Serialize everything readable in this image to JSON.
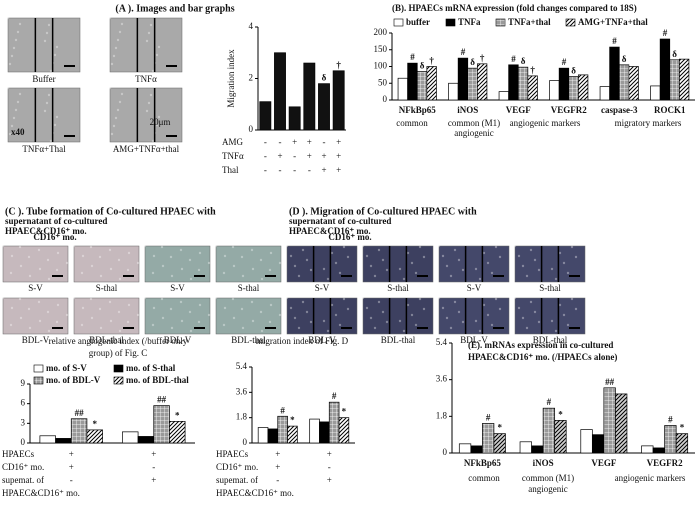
{
  "panels": {
    "a": {
      "title": "(A ). Images and bar graphs",
      "images": [
        "Buffer",
        "TNFα",
        "TNFα+Thal",
        "AMG+TNFα+thal"
      ],
      "magnification": "x40",
      "scale_bar": "20μm"
    },
    "c": {
      "title_lines": [
        "(C ).  Tube formation of Co-cultured  HPAEC with",
        "supernatant of  co-cultured",
        "HPAEC&CD16⁺ mo."
      ],
      "header": "CD16⁺ mo.",
      "images": [
        "S-V",
        "S-thal",
        "S-V",
        "S-thal",
        "BDL-V",
        "BDL-thal",
        "BDL-V",
        "BDL-thal"
      ]
    },
    "d": {
      "title_lines": [
        "(D ).  Migration of Co-cultured  HPAEC with",
        "supernatant of  co-cultured",
        "HPAEC&CD16⁺ mo."
      ],
      "header": "CD16⁺ mo.",
      "images": [
        "S-V",
        "S-thal",
        "S-V",
        "S-thal",
        "BDL-V",
        "BDL-thal",
        "BDL-V",
        "BDL-thal"
      ]
    }
  },
  "chart_data": [
    {
      "type": "bar",
      "y_label": "Migration index",
      "ylim": [
        0,
        4
      ],
      "yticks": [
        0,
        2,
        4
      ],
      "values": [
        1.1,
        3.0,
        0.9,
        2.6,
        1.8,
        2.3
      ],
      "color": "#111111",
      "annotations": [
        null,
        null,
        null,
        null,
        "δ",
        "†"
      ],
      "conditions": [
        {
          "label_lines": [
            "AMG"
          ],
          "marks": [
            "-",
            "-",
            "+",
            "+",
            "-",
            "+"
          ]
        },
        {
          "label_lines": [
            "TNFα"
          ],
          "marks": [
            "-",
            "+",
            "-",
            "+",
            "+",
            "+"
          ]
        },
        {
          "label_lines": [
            "Thal"
          ],
          "marks": [
            "-",
            "-",
            "-",
            "-",
            "+",
            "+"
          ]
        }
      ]
    },
    {
      "type": "bar",
      "title_lines": [
        "(B).  HPAECs mRNA expression (fold changes compared to 18S)"
      ],
      "ylim": [
        0,
        200
      ],
      "yticks": [
        0,
        50,
        100,
        150,
        200
      ],
      "categories": [
        "NFkBp65",
        "iNOS",
        "VEGF",
        "VEGFR2",
        "caspase-3",
        "ROCK1"
      ],
      "group_labels": [
        "common",
        "common (M1)",
        "angiogenic",
        "angiogenic markers",
        "migratory markers"
      ],
      "legend": "top",
      "series": [
        {
          "name": "buffer",
          "color": "#ffffff",
          "pattern": "solid",
          "values": [
            65,
            50,
            25,
            58,
            40,
            42
          ]
        },
        {
          "name": "TNFa",
          "color": "#000000",
          "pattern": "solid",
          "values": [
            110,
            125,
            105,
            95,
            158,
            182
          ],
          "annotations": [
            "#",
            "#",
            "#",
            "#",
            "#",
            "#"
          ]
        },
        {
          "name": "TNFa+thal",
          "color": "#9a9a9a",
          "pattern": "grid",
          "values": [
            85,
            95,
            98,
            70,
            105,
            120
          ],
          "annotations": [
            "δ",
            "δ",
            "δ",
            "δ",
            "δ",
            "δ"
          ]
        },
        {
          "name": "AMG+TNFa+thal",
          "color": "#ffffff",
          "pattern": "diagonal",
          "values": [
            100,
            108,
            72,
            75,
            100,
            122
          ],
          "annotations": [
            "†",
            "†",
            "†",
            null,
            null,
            null
          ]
        }
      ]
    },
    {
      "type": "bar",
      "title_lines": [
        "relative angiogenic index (/buffer only",
        "group) of Fig. C"
      ],
      "ylim": [
        0,
        9
      ],
      "yticks": [
        0,
        3,
        6,
        9
      ],
      "legend": "top",
      "series": [
        {
          "name": "mo. of S-V",
          "color": "#ffffff",
          "pattern": "solid",
          "values": [
            1.1,
            1.7
          ]
        },
        {
          "name": "mo. of S-thal",
          "color": "#000000",
          "pattern": "solid",
          "values": [
            0.7,
            1.0
          ]
        },
        {
          "name": "mo. of BDL-V",
          "color": "#9a9a9a",
          "pattern": "grid",
          "values": [
            3.7,
            5.7
          ],
          "annotations": [
            "##",
            "##"
          ]
        },
        {
          "name": "mo. of BDL-thal",
          "color": "#ffffff",
          "pattern": "diagonal",
          "values": [
            2.0,
            3.3
          ],
          "annotations": [
            "*",
            "*"
          ]
        }
      ],
      "conditions": [
        {
          "label_lines": [
            "HPAECs"
          ],
          "marks": [
            "+",
            "+"
          ]
        },
        {
          "label_lines": [
            "CD16⁺ mo."
          ],
          "marks": [
            "+",
            "-"
          ]
        },
        {
          "label_lines": [
            "supemat. of",
            "HPAEC&CD16⁺ mo."
          ],
          "marks": [
            "-",
            "+"
          ]
        }
      ]
    },
    {
      "type": "bar",
      "title_lines": [
        "migration index of Fig. D"
      ],
      "ylim": [
        0,
        5.4
      ],
      "yticks": [
        0,
        1.8,
        3.6,
        5.4
      ],
      "series": [
        {
          "color": "#ffffff",
          "pattern": "solid",
          "values": [
            1.1,
            1.7
          ]
        },
        {
          "color": "#000000",
          "pattern": "solid",
          "values": [
            1.0,
            1.5
          ]
        },
        {
          "color": "#9a9a9a",
          "pattern": "grid",
          "values": [
            1.9,
            2.9
          ],
          "annotations": [
            "#",
            "#"
          ]
        },
        {
          "color": "#ffffff",
          "pattern": "diagonal",
          "values": [
            1.2,
            1.8
          ],
          "annotations": [
            "*",
            "*"
          ]
        }
      ],
      "conditions": [
        {
          "label_lines": [
            "HPAECs"
          ],
          "marks": [
            "+",
            "+"
          ]
        },
        {
          "label_lines": [
            "CD16⁺ mo."
          ],
          "marks": [
            "+",
            "-"
          ]
        },
        {
          "label_lines": [
            "supemat. of",
            "HPAEC&CD16⁺ mo."
          ],
          "marks": [
            "-",
            "+"
          ]
        }
      ]
    },
    {
      "type": "bar",
      "title_lines": [
        "(E).  mRNAs expression in co-cultured",
        "HPAEC&CD16⁺ mo. (/HPAECs alone)"
      ],
      "ylim": [
        0,
        5.4
      ],
      "yticks": [
        0,
        1.8,
        3.6,
        5.4
      ],
      "categories": [
        "NFkBp65",
        "iNOS",
        "VEGF",
        "VEGFR2"
      ],
      "group_labels": [
        "common",
        "common (M1)",
        "angiogenic",
        "angiogenic markers"
      ],
      "series": [
        {
          "color": "#ffffff",
          "pattern": "solid",
          "values": [
            0.45,
            0.55,
            1.15,
            0.35
          ]
        },
        {
          "color": "#000000",
          "pattern": "solid",
          "values": [
            0.35,
            0.35,
            0.9,
            0.25
          ]
        },
        {
          "color": "#9a9a9a",
          "pattern": "grid",
          "values": [
            1.45,
            2.2,
            3.2,
            1.35
          ],
          "annotations": [
            "#",
            "#",
            "##",
            "#"
          ]
        },
        {
          "color": "#d0d0d0",
          "pattern": "diagonal",
          "values": [
            0.95,
            1.6,
            2.9,
            0.95
          ],
          "annotations": [
            "*",
            "*",
            null,
            "*"
          ]
        }
      ]
    }
  ]
}
